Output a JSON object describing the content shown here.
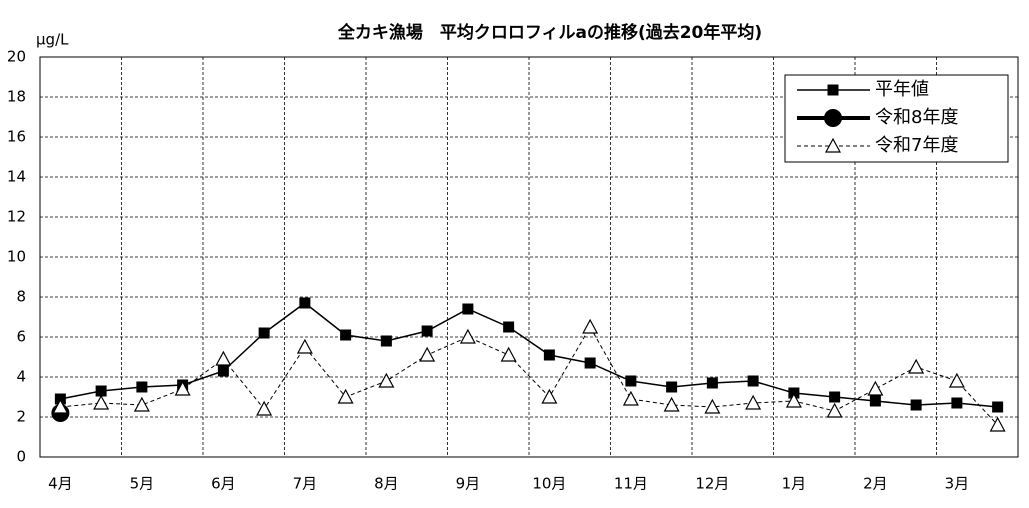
{
  "chart_data": {
    "type": "line",
    "title": "全カキ漁場　平均クロロフィルaの推移(過去20年平均)",
    "y_label": "μg/L",
    "categories": [
      "4月",
      null,
      "5月",
      null,
      "6月",
      null,
      "7月",
      null,
      "8月",
      null,
      "9月",
      null,
      "10月",
      null,
      "11月",
      null,
      "12月",
      null,
      "1月",
      null,
      "2月",
      null,
      "3月",
      null
    ],
    "series": [
      {
        "name": "平年値",
        "color": "#000000",
        "marker": "square",
        "line_style": "solid",
        "line_width": 1.5,
        "values": [
          2.9,
          3.3,
          3.5,
          3.6,
          4.3,
          6.2,
          7.7,
          6.1,
          5.8,
          6.3,
          7.4,
          6.5,
          5.1,
          4.7,
          3.8,
          3.5,
          3.7,
          3.8,
          3.2,
          3.0,
          2.8,
          2.6,
          2.7,
          2.5
        ]
      },
      {
        "name": "令和8年度",
        "color": "#000000",
        "marker": "circle",
        "line_style": "solid",
        "line_width": 4,
        "values": [
          2.2,
          null,
          null,
          null,
          null,
          null,
          null,
          null,
          null,
          null,
          null,
          null,
          null,
          null,
          null,
          null,
          null,
          null,
          null,
          null,
          null,
          null,
          null,
          null
        ]
      },
      {
        "name": "令和7年度",
        "color": "#000000",
        "marker": "triangle",
        "line_style": "dashed",
        "line_width": 1,
        "values": [
          2.5,
          2.7,
          2.6,
          3.4,
          4.9,
          2.4,
          5.5,
          3.0,
          3.8,
          5.1,
          6.0,
          5.1,
          3.0,
          6.5,
          2.9,
          2.6,
          2.5,
          2.7,
          2.8,
          2.3,
          3.4,
          4.5,
          3.8,
          1.6
        ]
      }
    ],
    "ylim": [
      0,
      20
    ],
    "yticks": [
      0,
      2,
      4,
      6,
      8,
      10,
      12,
      14,
      16,
      18,
      20
    ],
    "grid": true,
    "legend": "upper right"
  }
}
